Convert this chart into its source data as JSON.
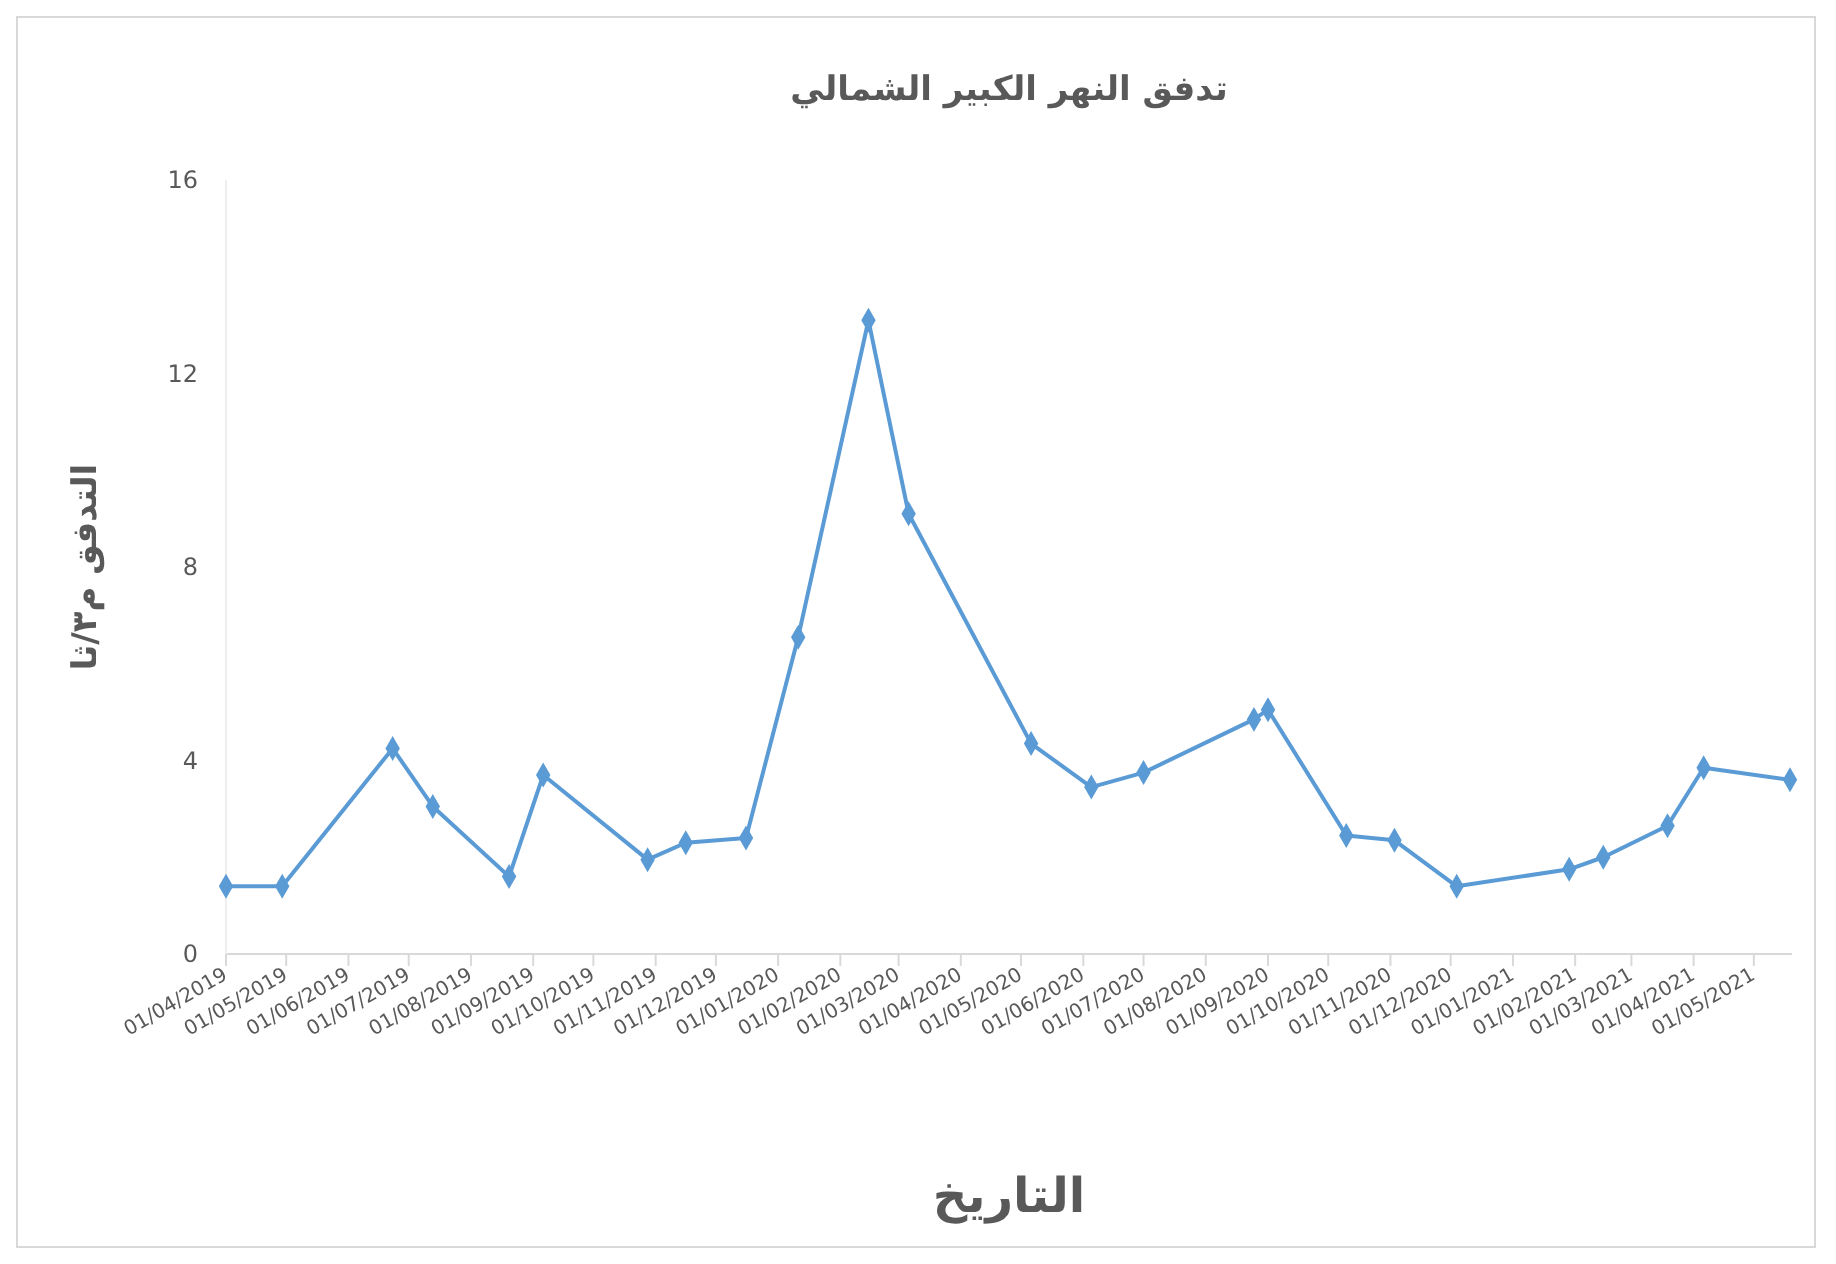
{
  "chart_data": {
    "type": "line",
    "title": "تدفق النهر الكبير الشمالي",
    "xlabel": "التاريخ",
    "ylabel": "التدفق م٣/ثا",
    "x": [
      "2019-04-01",
      "2019-04-29",
      "2019-06-23",
      "2019-07-13",
      "2019-08-20",
      "2019-09-06",
      "2019-10-28",
      "2019-11-16",
      "2019-12-16",
      "2020-01-11",
      "2020-02-15",
      "2020-03-06",
      "2020-05-06",
      "2020-06-05",
      "2020-07-01",
      "2020-08-25",
      "2020-09-01",
      "2020-10-10",
      "2020-11-03",
      "2020-12-04",
      "2021-01-29",
      "2021-02-15",
      "2021-03-19",
      "2021-04-06",
      "2021-05-19"
    ],
    "series": [
      {
        "color": "#5b9bd5",
        "values": [
          1.4,
          1.4,
          4.25,
          3.05,
          1.6,
          3.7,
          1.95,
          2.3,
          2.4,
          6.55,
          13.1,
          9.1,
          4.35,
          3.45,
          3.75,
          4.85,
          5.05,
          2.45,
          2.35,
          1.4,
          1.75,
          2.0,
          2.65,
          3.85,
          3.6
        ]
      }
    ],
    "xlim": [
      "2019-04-01",
      "2021-05-20"
    ],
    "xticks": [
      {
        "value": "2019-04-01",
        "label": "01/04/2019"
      },
      {
        "value": "2019-05-01",
        "label": "01/05/2019"
      },
      {
        "value": "2019-06-01",
        "label": "01/06/2019"
      },
      {
        "value": "2019-07-01",
        "label": "01/07/2019"
      },
      {
        "value": "2019-08-01",
        "label": "01/08/2019"
      },
      {
        "value": "2019-09-01",
        "label": "01/09/2019"
      },
      {
        "value": "2019-10-01",
        "label": "01/10/2019"
      },
      {
        "value": "2019-11-01",
        "label": "01/11/2019"
      },
      {
        "value": "2019-12-01",
        "label": "01/12/2019"
      },
      {
        "value": "2020-01-01",
        "label": "01/01/2020"
      },
      {
        "value": "2020-02-01",
        "label": "01/02/2020"
      },
      {
        "value": "2020-03-01",
        "label": "01/03/2020"
      },
      {
        "value": "2020-04-01",
        "label": "01/04/2020"
      },
      {
        "value": "2020-05-01",
        "label": "01/05/2020"
      },
      {
        "value": "2020-06-01",
        "label": "01/06/2020"
      },
      {
        "value": "2020-07-01",
        "label": "01/07/2020"
      },
      {
        "value": "2020-08-01",
        "label": "01/08/2020"
      },
      {
        "value": "2020-09-01",
        "label": "01/09/2020"
      },
      {
        "value": "2020-10-01",
        "label": "01/10/2020"
      },
      {
        "value": "2020-11-01",
        "label": "01/11/2020"
      },
      {
        "value": "2020-12-01",
        "label": "01/12/2020"
      },
      {
        "value": "2021-01-01",
        "label": "01/01/2021"
      },
      {
        "value": "2021-02-01",
        "label": "01/02/2021"
      },
      {
        "value": "2021-03-01",
        "label": "01/03/2021"
      },
      {
        "value": "2021-04-01",
        "label": "01/04/2021"
      },
      {
        "value": "2021-05-01",
        "label": "01/05/2021"
      }
    ],
    "ylim": [
      0,
      16
    ],
    "yticks": [
      0,
      4,
      8,
      12,
      16
    ],
    "grid": false,
    "marker": "diamond",
    "line_style": "solid"
  }
}
